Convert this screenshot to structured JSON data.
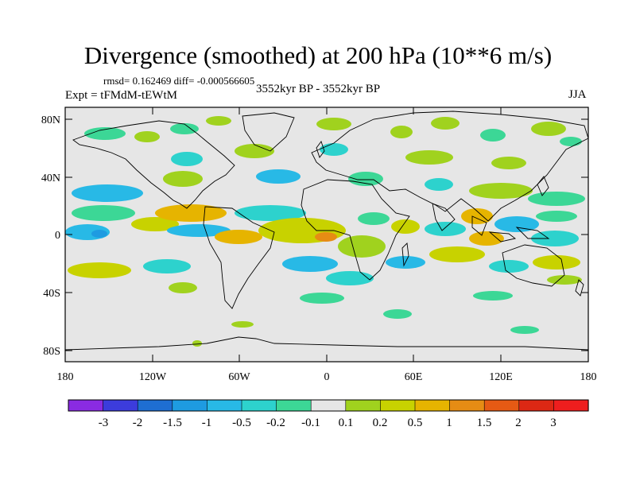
{
  "title": "Divergence (smoothed) at 200 hPa (10**6 m/s)",
  "stats": "rmsd= 0.162469 diff= -0.000566605",
  "expt": "Expt = tFMdM-tEWtM",
  "period": "3552kyr BP - 3552kyr BP",
  "season": "JJA",
  "axes": {
    "lat_ticks": [
      "80N",
      "40N",
      "0",
      "40S",
      "80S"
    ],
    "lon_ticks": [
      "180",
      "120W",
      "60W",
      "0",
      "60E",
      "120E",
      "180"
    ]
  },
  "colorbar": {
    "labels": [
      "-3",
      "-2",
      "-1.5",
      "-1",
      "-0.5",
      "-0.2",
      "-0.1",
      "0.1",
      "0.2",
      "0.5",
      "1",
      "1.5",
      "2",
      "3"
    ],
    "colors": [
      "#8a2be2",
      "#3c3cdc",
      "#1e6ed2",
      "#1e9be1",
      "#28b9e6",
      "#2dd2cd",
      "#3cd796",
      "#e6e6e6",
      "#a0d21e",
      "#c8d200",
      "#e6b400",
      "#e68c14",
      "#e65a14",
      "#dc2814",
      "#ee1e1e"
    ]
  },
  "colors": {
    "background": "#e6e6e6",
    "coast": "#000000"
  }
}
